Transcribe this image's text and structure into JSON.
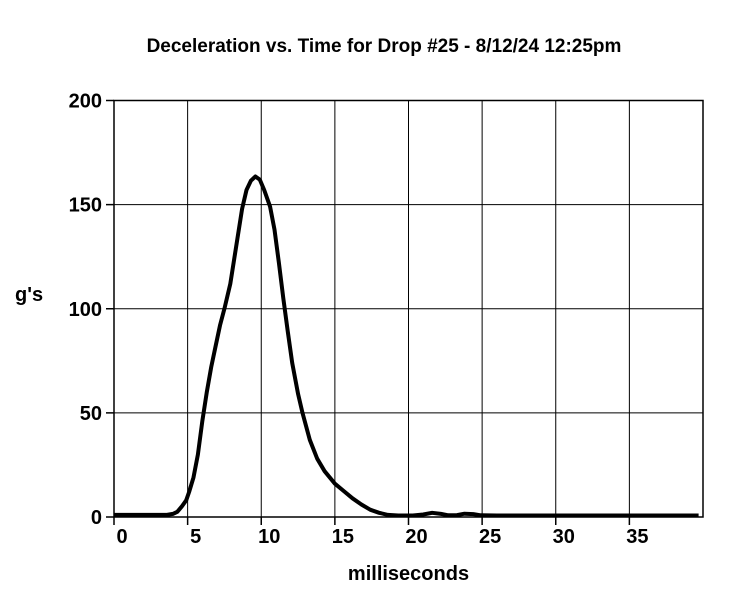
{
  "chart_data": {
    "type": "line",
    "title": "Deceleration vs. Time for Drop #25 - 8/12/24 12:25pm",
    "xlabel": "milliseconds",
    "ylabel": "g's",
    "xlim": [
      0,
      40
    ],
    "ylim": [
      0,
      200
    ],
    "x_ticks": [
      0,
      5,
      10,
      15,
      20,
      25,
      30,
      35
    ],
    "y_ticks": [
      0,
      50,
      100,
      150,
      200
    ],
    "grid": true,
    "legend": "none",
    "background_color": "#ffffff",
    "line_color": "#000000",
    "series": [
      {
        "name": "deceleration",
        "points": [
          [
            0,
            1
          ],
          [
            3.0,
            1
          ],
          [
            3.6,
            1
          ],
          [
            4.0,
            1.5
          ],
          [
            4.3,
            2.5
          ],
          [
            4.6,
            5
          ],
          [
            4.9,
            8
          ],
          [
            5.1,
            12
          ],
          [
            5.4,
            19
          ],
          [
            5.7,
            30
          ],
          [
            6.0,
            46
          ],
          [
            6.3,
            60
          ],
          [
            6.6,
            72
          ],
          [
            6.9,
            82
          ],
          [
            7.2,
            92
          ],
          [
            7.5,
            100
          ],
          [
            7.9,
            112
          ],
          [
            8.3,
            130
          ],
          [
            8.7,
            148
          ],
          [
            9.0,
            157
          ],
          [
            9.3,
            161.5
          ],
          [
            9.6,
            163.5
          ],
          [
            9.9,
            162
          ],
          [
            10.2,
            157
          ],
          [
            10.6,
            149
          ],
          [
            10.9,
            138
          ],
          [
            11.2,
            122
          ],
          [
            11.5,
            105
          ],
          [
            11.8,
            89
          ],
          [
            12.1,
            74
          ],
          [
            12.5,
            59
          ],
          [
            12.8,
            50
          ],
          [
            13.3,
            37
          ],
          [
            13.8,
            28
          ],
          [
            14.3,
            22
          ],
          [
            15.0,
            16
          ],
          [
            15.6,
            12.5
          ],
          [
            16.2,
            9
          ],
          [
            16.8,
            6
          ],
          [
            17.4,
            3.5
          ],
          [
            18.0,
            2
          ],
          [
            18.6,
            1
          ],
          [
            19.3,
            0.7
          ],
          [
            20.3,
            0.7
          ],
          [
            21.0,
            1.2
          ],
          [
            21.6,
            2
          ],
          [
            22.2,
            1.5
          ],
          [
            22.7,
            0.8
          ],
          [
            23.3,
            0.9
          ],
          [
            23.8,
            1.6
          ],
          [
            24.4,
            1.4
          ],
          [
            24.9,
            0.8
          ],
          [
            26,
            0.7
          ],
          [
            28,
            0.7
          ],
          [
            30,
            0.7
          ],
          [
            33,
            0.7
          ],
          [
            36,
            0.7
          ],
          [
            39.7,
            0.7
          ]
        ]
      }
    ]
  }
}
